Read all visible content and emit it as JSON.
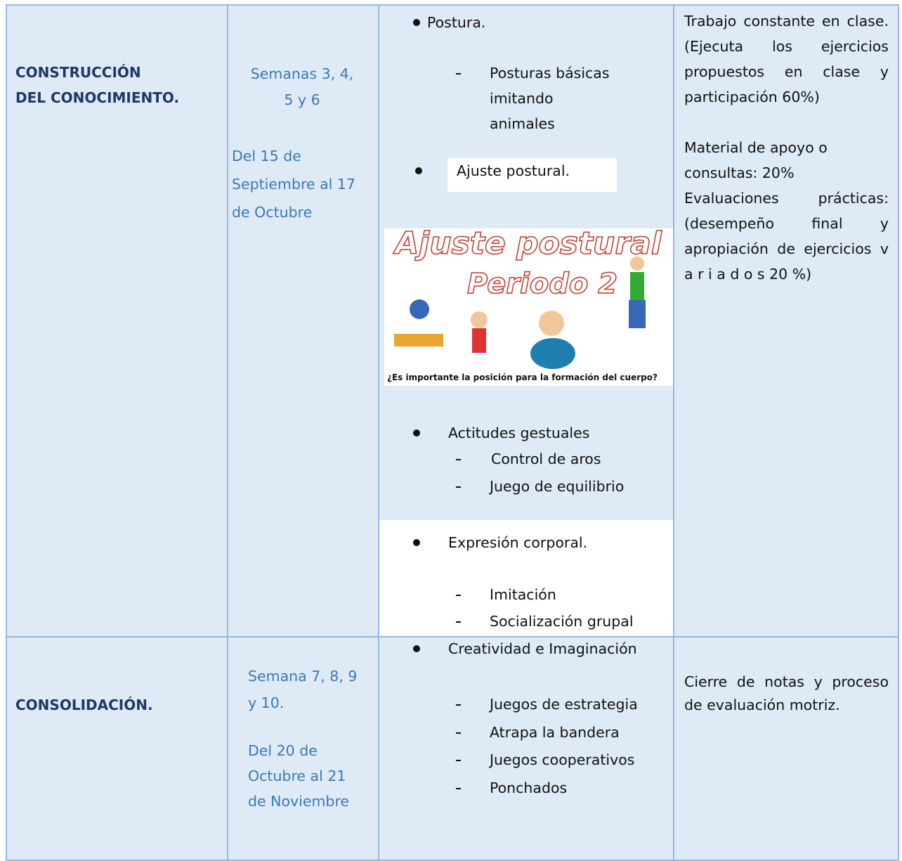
{
  "rows": [
    {
      "stage": [
        "CONSTRUCCIÓN",
        "DEL CONOCIMIENTO."
      ],
      "weeks": [
        "Semanas 3, 4,",
        "5 y 6"
      ],
      "dates": [
        "Del 15 de",
        "Septiembre al 17",
        "de Octubre"
      ],
      "content": [
        {
          "item": "Postura.",
          "subitems": [
            [
              "Posturas básicas",
              "imitando",
              "animales"
            ]
          ]
        },
        {
          "item": "Ajuste postural."
        },
        {
          "item": "Actitudes gestuales",
          "subitems": [
            "Control de aros",
            "Juego de equilibrio"
          ]
        },
        {
          "item": "Expresión corporal.",
          "subitems": [
            "Imitación",
            "Socialización grupal"
          ]
        }
      ],
      "image": {
        "title": "Ajuste postural",
        "subtitle": "Periodo 2",
        "caption": "¿Es importante la posición para la formación del cuerpo?"
      },
      "evaluation": [
        "Trabajo constante en clase. (Ejecuta los ejercicios propuestos en clase y participación 60%)",
        "Material de apoyo o consultas: 20%",
        "Evaluaciones prácticas: (desempeño final y apropiación de ejercicios v a r i a d o s 20 %)"
      ]
    },
    {
      "stage": [
        "CONSOLIDACIÓN."
      ],
      "weeks": [
        "Semana 7, 8, 9",
        "y 10."
      ],
      "dates": [
        "Del 20 de",
        "Octubre al 21",
        "de Noviembre"
      ],
      "content": [
        {
          "item": "Creatividad e Imaginación",
          "subitems": [
            "Juegos de estrategia",
            "Atrapa la bandera",
            "Juegos cooperativos",
            "Ponchados"
          ]
        }
      ],
      "evaluation": [
        "Cierre de notas y proceso de evaluación motriz."
      ]
    }
  ]
}
